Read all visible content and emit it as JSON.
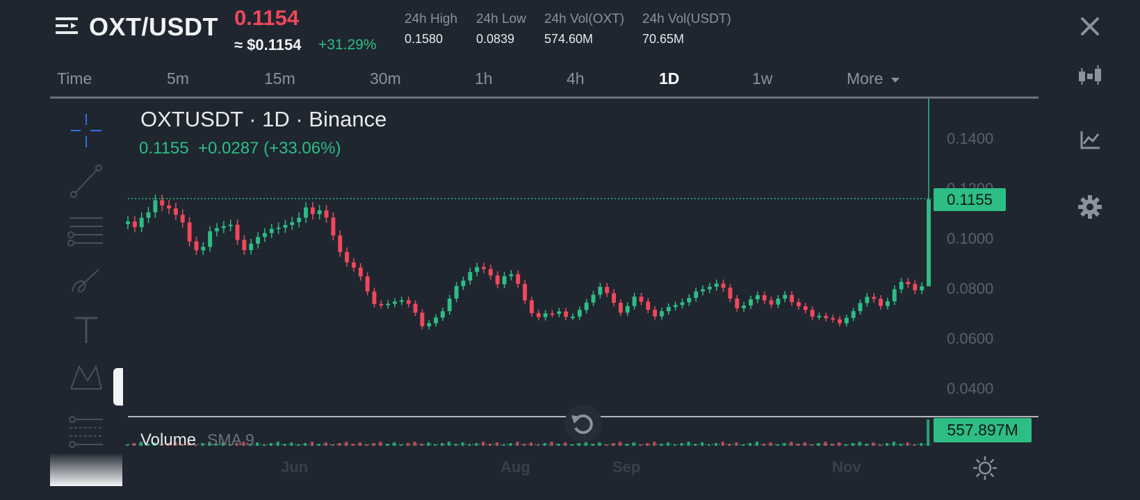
{
  "header": {
    "pair": "OXT/USDT",
    "last_price": "0.1154",
    "usd_price": "≈ $0.1154",
    "change_pct": "+31.29%",
    "stats": [
      {
        "label": "24h High",
        "value": "0.1580"
      },
      {
        "label": "24h Low",
        "value": "0.0839"
      },
      {
        "label": "24h Vol(OXT)",
        "value": "574.60M"
      },
      {
        "label": "24h Vol(USDT)",
        "value": "70.65M"
      }
    ]
  },
  "tabs": [
    {
      "label": "Time"
    },
    {
      "label": "5m"
    },
    {
      "label": "15m"
    },
    {
      "label": "30m"
    },
    {
      "label": "1h"
    },
    {
      "label": "4h"
    },
    {
      "label": "1D",
      "active": true
    },
    {
      "label": "1w"
    },
    {
      "label": "More"
    }
  ],
  "side_icons": [
    "close-icon",
    "candlestick-icon",
    "indicator-chart-icon",
    "gear-icon"
  ],
  "drawing_tools": [
    "crosshair-icon",
    "trend-line-icon",
    "horizontal-lines-icon",
    "brush-icon",
    "text-icon",
    "pattern-icon",
    "fib-icon"
  ],
  "chart": {
    "title": "OXTUSDT · 1D · Binance",
    "ohlc_close": "0.1155",
    "ohlc_change": "+0.0287 (+33.06%)",
    "price_tag": "0.1155",
    "y_ticks": [
      "0.1400",
      "0.1200",
      "0.1000",
      "0.0800",
      "0.0600",
      "0.0400"
    ],
    "x_ticks": [
      "Jun",
      "Aug",
      "Sep",
      "Nov"
    ],
    "volume_label": "Volume",
    "volume_sma": "SMA 9",
    "volume_tag": "557.897M",
    "colors": {
      "up": "#2ebd85",
      "down": "#f0485a",
      "background": "#1f2630"
    }
  },
  "chart_data": {
    "type": "candlestick",
    "title": "OXTUSDT · 1D · Binance",
    "ylim": [
      0.03,
      0.16
    ],
    "y_ticks": [
      0.14,
      0.12,
      0.1,
      0.08,
      0.06,
      0.04
    ],
    "x_ticks": [
      "Jun",
      "Aug",
      "Sep",
      "Nov"
    ],
    "last_close": 0.1155,
    "closes": [
      0.1065,
      0.1042,
      0.108,
      0.1102,
      0.1151,
      0.113,
      0.1118,
      0.1092,
      0.1061,
      0.0984,
      0.0948,
      0.0962,
      0.1025,
      0.1038,
      0.1046,
      0.1052,
      0.099,
      0.0949,
      0.0975,
      0.1002,
      0.1018,
      0.1035,
      0.104,
      0.1051,
      0.1062,
      0.108,
      0.1122,
      0.1095,
      0.111,
      0.1081,
      0.1008,
      0.0941,
      0.0899,
      0.0878,
      0.0842,
      0.0781,
      0.073,
      0.0726,
      0.0731,
      0.074,
      0.0745,
      0.0731,
      0.0695,
      0.064,
      0.0652,
      0.0675,
      0.0701,
      0.0752,
      0.0803,
      0.0825,
      0.086,
      0.088,
      0.0872,
      0.0846,
      0.081,
      0.0843,
      0.0851,
      0.0812,
      0.0745,
      0.0693,
      0.0677,
      0.0692,
      0.069,
      0.07,
      0.0678,
      0.0679,
      0.0706,
      0.0736,
      0.0768,
      0.08,
      0.0774,
      0.0735,
      0.0695,
      0.0722,
      0.076,
      0.074,
      0.0707,
      0.068,
      0.0701,
      0.0718,
      0.0726,
      0.0737,
      0.0755,
      0.0781,
      0.079,
      0.08,
      0.0813,
      0.0796,
      0.0752,
      0.0713,
      0.0724,
      0.0749,
      0.0766,
      0.0745,
      0.0728,
      0.0752,
      0.0767,
      0.0738,
      0.0721,
      0.0706,
      0.0679,
      0.0682,
      0.0673,
      0.0668,
      0.0652,
      0.0674,
      0.0701,
      0.0734,
      0.0759,
      0.0751,
      0.0722,
      0.0741,
      0.079,
      0.082,
      0.0811,
      0.0786,
      0.0802,
      0.1155
    ],
    "volume": {
      "label": "Volume SMA 9",
      "last": "557.897M"
    }
  },
  "ui": {
    "reset_icon": "reset-view-icon",
    "theme_icon": "brightness-icon"
  }
}
